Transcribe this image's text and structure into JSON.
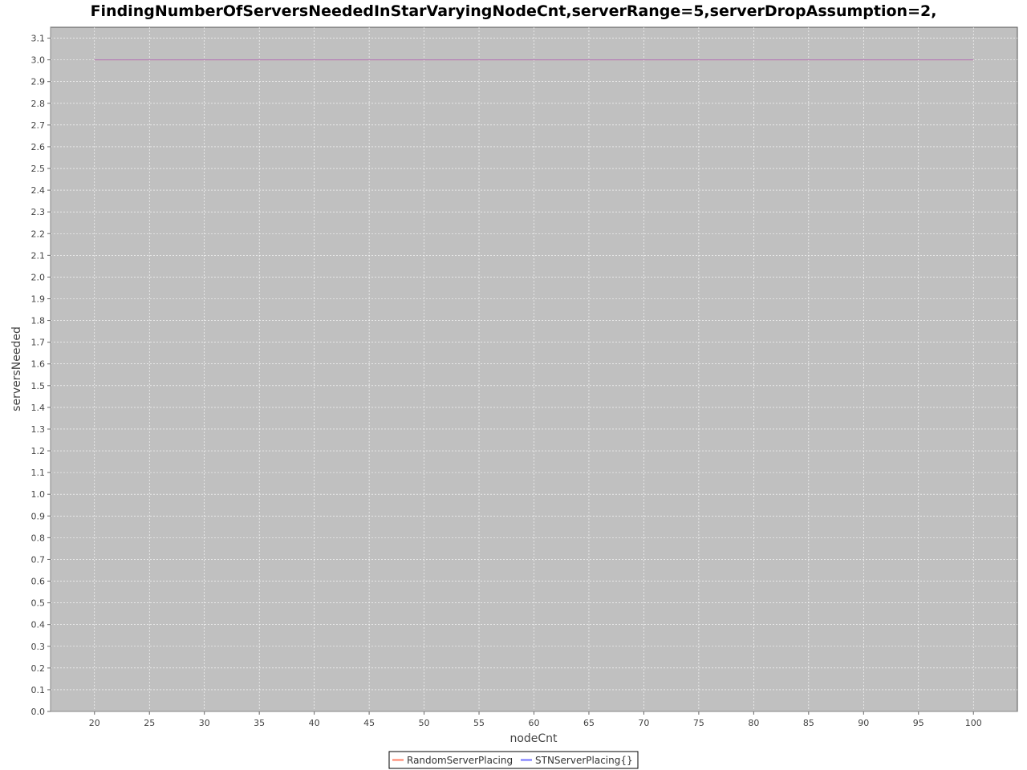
{
  "chart_data": {
    "type": "line",
    "title": "FindingNumberOfServersNeededInStarVaryingNodeCnt,serverRange=5,serverDropAssumption=2,",
    "xlabel": "nodeCnt",
    "ylabel": "serversNeeded",
    "xlim": [
      16,
      104
    ],
    "ylim": [
      0.0,
      3.15
    ],
    "x_ticks": [
      "20",
      "25",
      "30",
      "35",
      "40",
      "45",
      "50",
      "55",
      "60",
      "65",
      "70",
      "75",
      "80",
      "85",
      "90",
      "95",
      "100"
    ],
    "y_ticks": [
      "0.0",
      "0.1",
      "0.2",
      "0.3",
      "0.4",
      "0.5",
      "0.6",
      "0.7",
      "0.8",
      "0.9",
      "1.0",
      "1.1",
      "1.2",
      "1.3",
      "1.4",
      "1.5",
      "1.6",
      "1.7",
      "1.8",
      "1.9",
      "2.0",
      "2.1",
      "2.2",
      "2.3",
      "2.4",
      "2.5",
      "2.6",
      "2.7",
      "2.8",
      "2.9",
      "3.0",
      "3.1"
    ],
    "grid": true,
    "legend_position": "bottom-center",
    "plot_background": "#c0c0c0",
    "gridline_color": "#ffffff",
    "series": [
      {
        "name": "RandomServerPlacing",
        "color": "#ff7f66",
        "x": [
          20,
          100
        ],
        "y": [
          3.0,
          3.0
        ]
      },
      {
        "name": "STNServerPlacing{}",
        "color": "#6f6fff",
        "x": [
          20,
          100
        ],
        "y": [
          3.0,
          3.0
        ]
      }
    ]
  }
}
